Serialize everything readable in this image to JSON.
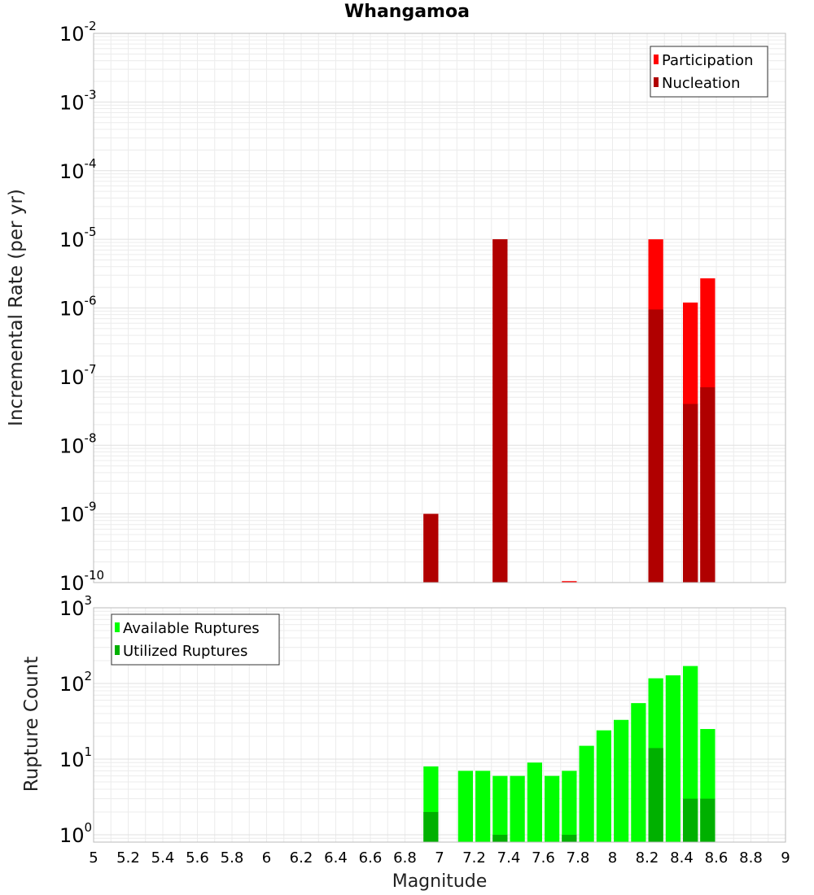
{
  "title": "Whangamoa",
  "colors": {
    "participation": "#ff0000",
    "nucleation": "#b00000",
    "available": "#00ff00",
    "utilized": "#00b000",
    "grid": "#ececec",
    "frame": "#bbbbbb"
  },
  "x_axis": {
    "label": "Magnitude",
    "ticks": [
      "5",
      "5.2",
      "5.4",
      "5.6",
      "5.8",
      "6",
      "6.2",
      "6.4",
      "6.6",
      "6.8",
      "7",
      "7.2",
      "7.4",
      "7.6",
      "7.8",
      "8",
      "8.2",
      "8.4",
      "8.6",
      "8.8",
      "9"
    ]
  },
  "chart_data": [
    {
      "type": "bar",
      "scale": "log",
      "ylabel": "Incremental Rate (per yr)",
      "xlim": [
        5,
        9
      ],
      "ylim": [
        1e-10,
        0.01
      ],
      "y_tick_exponents": [
        "-10",
        "-9",
        "-8",
        "-7",
        "-6",
        "-5",
        "-4",
        "-3",
        "-2"
      ],
      "legend": {
        "position": "top-right",
        "entries": [
          "Participation",
          "Nucleation"
        ]
      },
      "series": [
        {
          "name": "Participation",
          "x": [
            6.95,
            7.35,
            7.75,
            8.25,
            8.45,
            8.55
          ],
          "values": [
            1e-09,
            1e-05,
            1.05e-10,
            1e-05,
            1.2e-06,
            2.7e-06
          ]
        },
        {
          "name": "Nucleation",
          "x": [
            6.95,
            7.35,
            8.25,
            8.45,
            8.55
          ],
          "values": [
            1e-09,
            1e-05,
            9.5e-07,
            4e-08,
            7e-08
          ]
        }
      ]
    },
    {
      "type": "bar",
      "scale": "log",
      "ylabel": "Rupture Count",
      "xlim": [
        5,
        9
      ],
      "ylim": [
        0.8,
        1000
      ],
      "y_tick_exponents": [
        "0",
        "1",
        "2",
        "3"
      ],
      "legend": {
        "position": "top-left",
        "entries": [
          "Available Ruptures",
          "Utilized Ruptures"
        ]
      },
      "series": [
        {
          "name": "Available Ruptures",
          "x": [
            6.95,
            7.15,
            7.25,
            7.35,
            7.45,
            7.55,
            7.65,
            7.75,
            7.85,
            7.95,
            8.05,
            8.15,
            8.25,
            8.35,
            8.45,
            8.55
          ],
          "values": [
            8,
            7,
            7,
            6,
            6,
            9,
            6,
            7,
            15,
            24,
            33,
            55,
            117,
            128,
            170,
            25
          ]
        },
        {
          "name": "Utilized Ruptures",
          "x": [
            6.95,
            7.35,
            7.75,
            8.25,
            8.45,
            8.55
          ],
          "values": [
            2,
            1,
            1,
            14,
            3,
            3
          ]
        }
      ]
    }
  ]
}
